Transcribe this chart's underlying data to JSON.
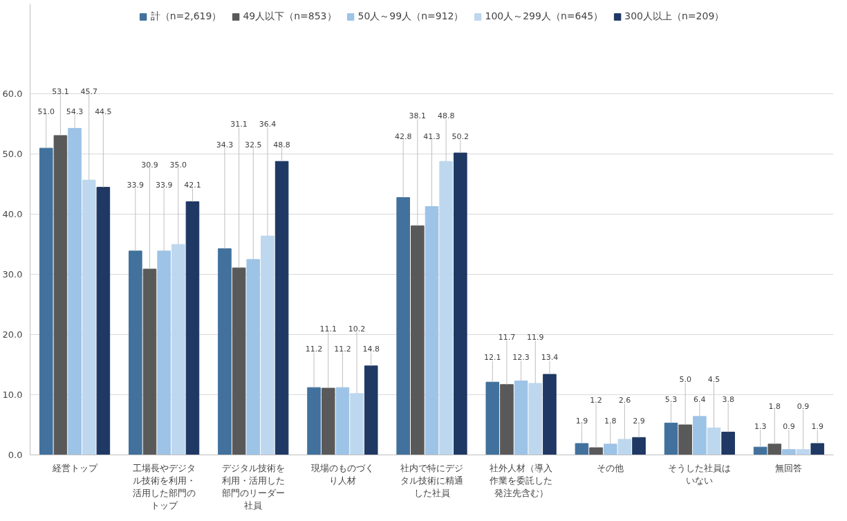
{
  "chart_data": {
    "type": "bar",
    "categories": [
      "経営トップ",
      "工場長やデジタル技術を利用・活用した部門のトップ",
      "デジタル技術を利用・活用した部門のリーダー社員",
      "現場のものづくり人材",
      "社内で特にデジタル技術に精通した社員",
      "社外人材（導入作業を委託した発注先含む）",
      "その他",
      "そうした社員はいない",
      "無回答"
    ],
    "series": [
      {
        "name": "計（n=2,619）",
        "color": "#41719c",
        "values": [
          51.0,
          33.9,
          34.3,
          11.2,
          42.8,
          12.1,
          1.9,
          5.3,
          1.3
        ],
        "value_labels": [
          "51.0",
          "33.9",
          "34.3",
          "11.2",
          "42.8",
          "12.1",
          "1.9",
          "5.3",
          "1.3"
        ]
      },
      {
        "name": "49人以下（n=853）",
        "color": "#595959",
        "values": [
          53.1,
          30.9,
          31.1,
          11.1,
          38.1,
          11.7,
          1.2,
          5.0,
          1.8
        ],
        "value_labels": [
          "53.1",
          "30.9",
          "31.1",
          "11.1",
          "38.1",
          "11.7",
          "1.2",
          "5.0",
          "1.8"
        ]
      },
      {
        "name": "50人～99人（n=912）",
        "color": "#9dc3e6",
        "values": [
          54.3,
          33.9,
          32.5,
          11.2,
          41.3,
          12.3,
          1.8,
          6.4,
          0.9
        ],
        "value_labels": [
          "54.3",
          "33.9",
          "32.5",
          "11.2",
          "41.3",
          "12.3",
          "1.8",
          "6.4",
          "0.9"
        ]
      },
      {
        "name": "100人～299人（n=645）",
        "color": "#bdd7ee",
        "values": [
          45.7,
          35.0,
          36.4,
          10.2,
          48.8,
          11.9,
          2.6,
          4.5,
          0.9
        ],
        "value_labels": [
          "45.7",
          "35.0",
          "36.4",
          "10.2",
          "48.8",
          "11.9",
          "2.6",
          "4.5",
          "0.9"
        ]
      },
      {
        "name": "300人以上（n=209）",
        "color": "#1f3864",
        "values": [
          44.5,
          42.1,
          48.8,
          14.8,
          50.2,
          13.4,
          2.9,
          3.8,
          1.9
        ],
        "value_labels": [
          "44.5",
          "42.1",
          "48.8",
          "14.8",
          "50.2",
          "13.4",
          "2.9",
          "3.8",
          "1.9"
        ]
      }
    ],
    "ylim": [
      0,
      75
    ],
    "yticks": [
      {
        "value": 0,
        "label": "0.0"
      },
      {
        "value": 10,
        "label": "10.0"
      },
      {
        "value": 20,
        "label": "20.0"
      },
      {
        "value": 30,
        "label": "30.0"
      },
      {
        "value": 40,
        "label": "40.0"
      },
      {
        "value": 50,
        "label": "50.0"
      },
      {
        "value": 60,
        "label": "60.0"
      }
    ],
    "grid": "y",
    "legend": "top"
  }
}
